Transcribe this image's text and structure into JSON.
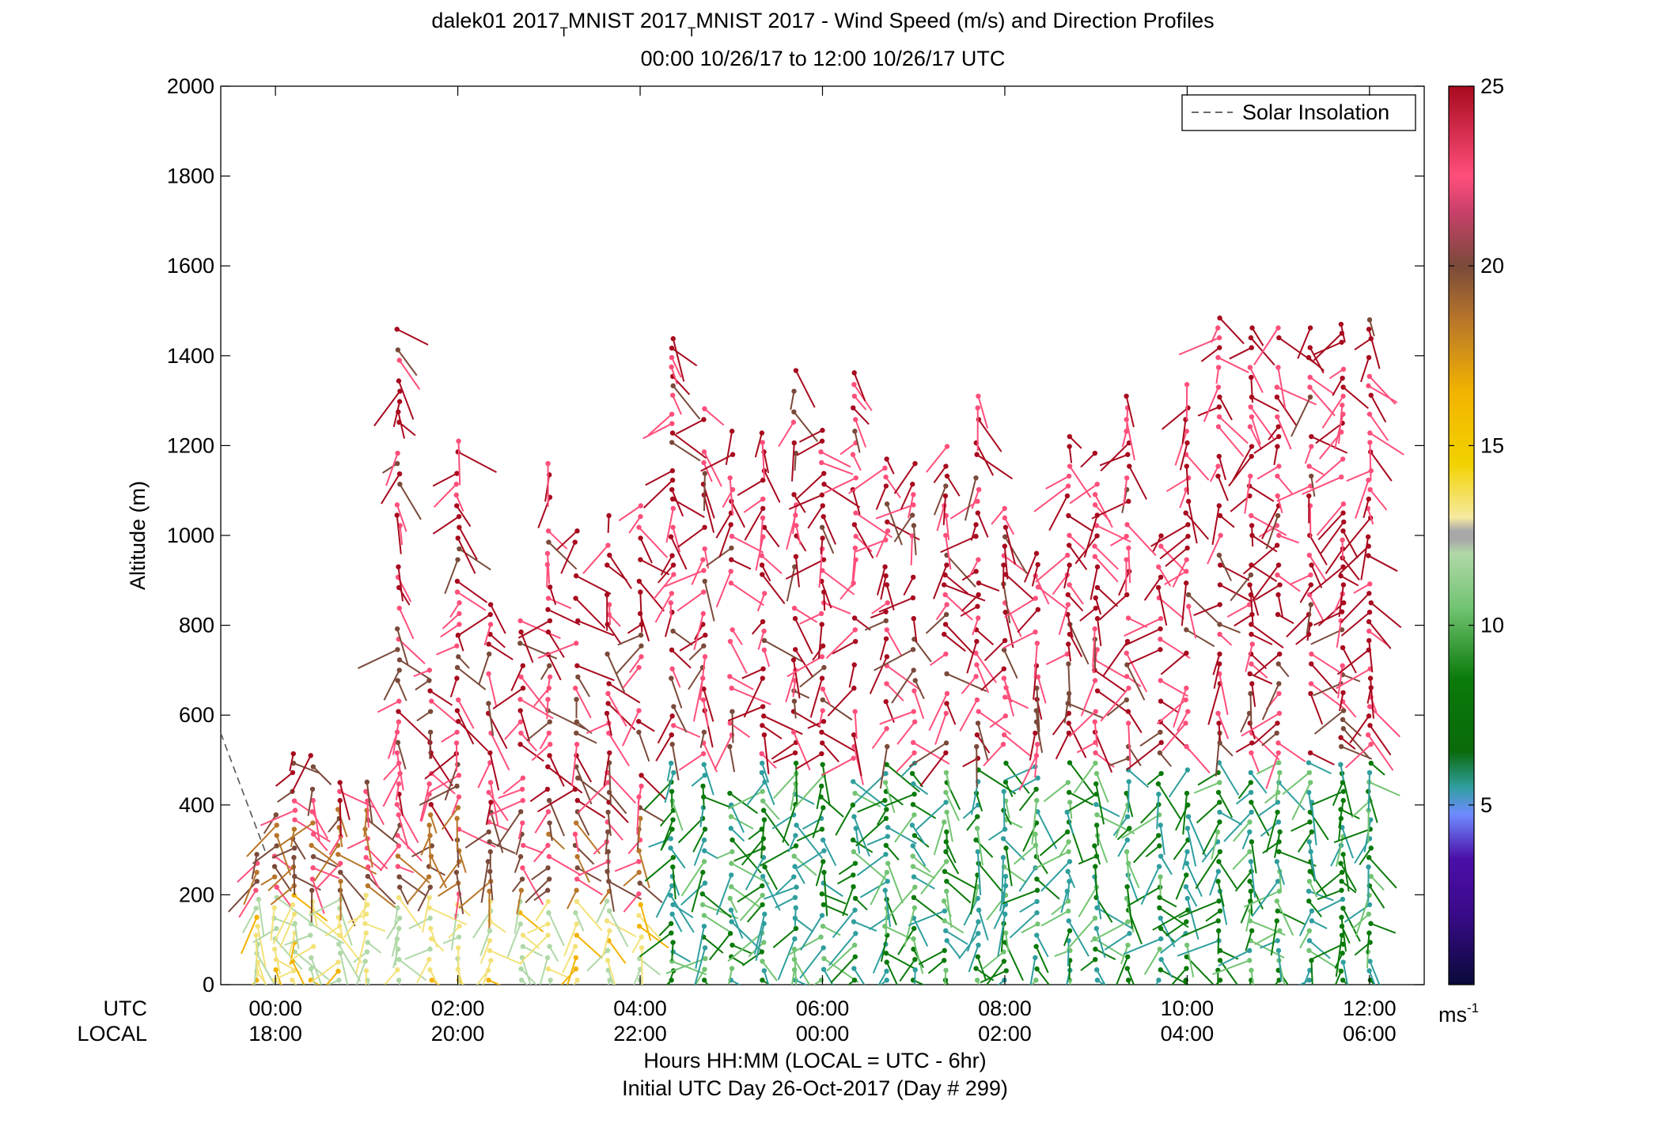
{
  "title": {
    "line1_prefix": "dalek01 2017",
    "sub_t": "T",
    "line1_mid": "MNIST 2017",
    "line1_suffix": "MNIST 2017 - Wind Speed (m/s) and Direction Profiles",
    "line2": "00:00 10/26/17 to 12:00 10/26/17  UTC"
  },
  "axes": {
    "ylabel": "Altitude (m)",
    "yticks": [
      "0",
      "200",
      "400",
      "600",
      "800",
      "1000",
      "1200",
      "1400",
      "1600",
      "1800",
      "2000"
    ],
    "utc_label": "UTC",
    "local_label": "LOCAL",
    "xticks_utc": [
      "00:00",
      "02:00",
      "04:00",
      "06:00",
      "08:00",
      "10:00",
      "12:00"
    ],
    "xticks_local": [
      "18:00",
      "20:00",
      "22:00",
      "00:00",
      "02:00",
      "04:00",
      "06:00"
    ],
    "xlabel_line1": "Hours HH:MM  (LOCAL = UTC - 6hr)",
    "xlabel_line2": "Initial UTC Day 26-Oct-2017 (Day # 299)"
  },
  "legend": {
    "label": "Solar Insolation",
    "placement": "top-right"
  },
  "colorbar": {
    "ticks": [
      "5",
      "10",
      "15",
      "20",
      "25"
    ],
    "unit_base": "ms",
    "unit_exp": "-1",
    "colors": [
      "#0a0a3a",
      "#4b0fa8",
      "#6f8cff",
      "#2f9e9e",
      "#0a7a0a",
      "#72c472",
      "#b0d8a8",
      "#f3e27a",
      "#f2b300",
      "#b8762a",
      "#7a4a3a",
      "#ff4f7b",
      "#a80a1e"
    ]
  },
  "chart_data": {
    "type": "scatter",
    "description_of_marks": "wind barbs: dot at (time, altitude) with stem pointing along wind direction, colored by speed",
    "xlim_hours_utc": [
      -0.6,
      12.6
    ],
    "ylim_m": [
      0,
      2000
    ],
    "speed_range_ms": [
      0,
      25
    ],
    "solar_insolation": {
      "x_hours": [
        -0.6,
        -0.1
      ],
      "y_m": [
        560,
        290
      ]
    },
    "profile_times_hours": [
      -0.2,
      0.0,
      0.2,
      0.4,
      0.7,
      1.0,
      1.35,
      1.7,
      2.0,
      2.35,
      2.7,
      3.0,
      3.3,
      3.65,
      4.0,
      4.35,
      4.7,
      5.0,
      5.35,
      5.7,
      6.0,
      6.35,
      6.7,
      7.0,
      7.35,
      7.7,
      8.0,
      8.35,
      8.7,
      9.0,
      9.35,
      9.7,
      10.0,
      10.35,
      10.7,
      11.0,
      11.35,
      11.7,
      12.0
    ],
    "profile_tops_m": [
      290,
      400,
      550,
      530,
      460,
      470,
      1480,
      700,
      1230,
      850,
      820,
      1160,
      1020,
      1080,
      1070,
      1490,
      1300,
      1240,
      1230,
      1380,
      1240,
      1380,
      1200,
      1180,
      1200,
      1340,
      1080,
      960,
      1220,
      1200,
      1350,
      1020,
      1350,
      1490,
      1480,
      1480,
      1480,
      1480,
      1480
    ],
    "speed_bands_ms": [
      {
        "alt_m": [
          0,
          200
        ],
        "speed": 14
      },
      {
        "alt_m": [
          200,
          400
        ],
        "speed": 21
      },
      {
        "alt_m": [
          400,
          800
        ],
        "speed": 23
      },
      {
        "alt_m": [
          800,
          1500
        ],
        "speed": 24
      }
    ],
    "late_period_low_level_speed_ms": 8
  }
}
